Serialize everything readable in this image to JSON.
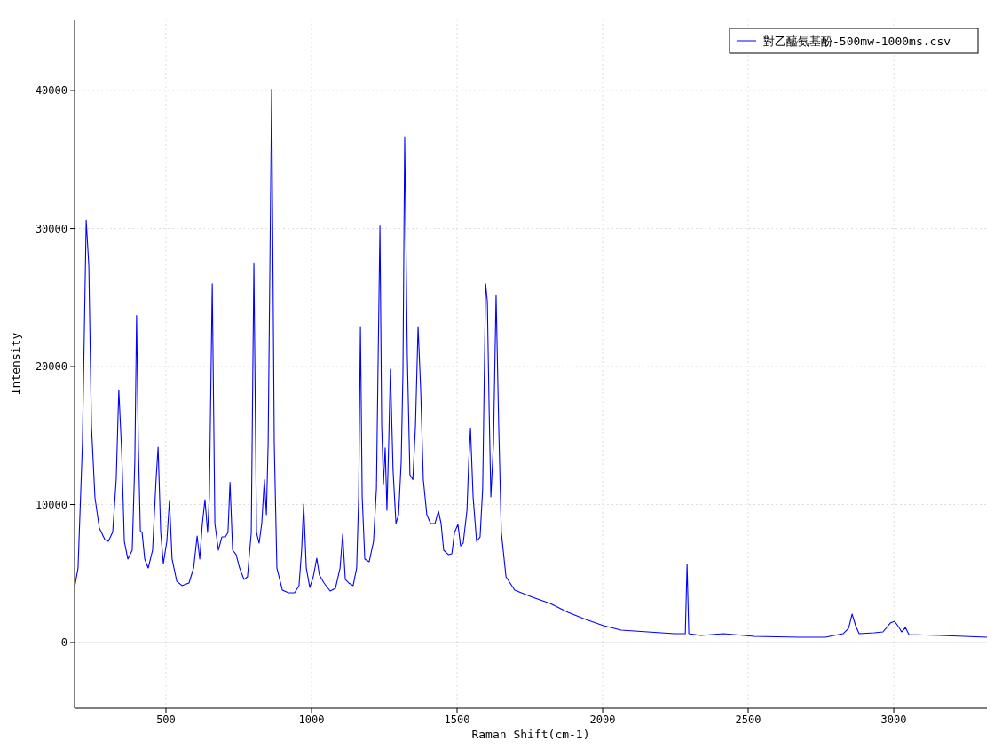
{
  "chart_data": {
    "type": "line",
    "xlabel": "Raman Shift(cm-1)",
    "ylabel": "Intensity",
    "xlim": [
      186,
      3320
    ],
    "ylim": [
      -4760,
      45150
    ],
    "xticks": [
      500,
      1000,
      1500,
      2000,
      2500,
      3000
    ],
    "yticks": [
      0,
      10000,
      20000,
      30000,
      40000
    ],
    "grid": true,
    "legend": "top right",
    "series": [
      {
        "name": "對乙醯氨基酚-500mw-1000ms.csv",
        "color": "#0000ff",
        "x": [
          186,
          198,
          213,
          226,
          235,
          244,
          256,
          271,
          290,
          302,
          317,
          329,
          338,
          348,
          357,
          369,
          384,
          393,
          399,
          405,
          412,
          418,
          427,
          439,
          454,
          466,
          473,
          482,
          491,
          503,
          512,
          521,
          537,
          555,
          579,
          595,
          607,
          616,
          625,
          634,
          643,
          649,
          659,
          668,
          680,
          692,
          704,
          713,
          720,
          729,
          741,
          753,
          768,
          780,
          793,
          802,
          811,
          820,
          829,
          838,
          845,
          851,
          863,
          872,
          881,
          900,
          921,
          942,
          957,
          966,
          973,
          982,
          994,
          1006,
          1018,
          1027,
          1043,
          1064,
          1082,
          1098,
          1107,
          1116,
          1128,
          1143,
          1155,
          1162,
          1168,
          1174,
          1183,
          1198,
          1213,
          1223,
          1229,
          1235,
          1241,
          1247,
          1253,
          1259,
          1265,
          1271,
          1280,
          1290,
          1299,
          1308,
          1314,
          1320,
          1329,
          1338,
          1348,
          1357,
          1366,
          1375,
          1384,
          1396,
          1409,
          1424,
          1436,
          1445,
          1454,
          1470,
          1482,
          1491,
          1503,
          1512,
          1521,
          1534,
          1540,
          1546,
          1555,
          1567,
          1579,
          1588,
          1598,
          1604,
          1610,
          1616,
          1625,
          1634,
          1643,
          1652,
          1668,
          1698,
          1759,
          1820,
          1881,
          1942,
          2003,
          2064,
          2155,
          2247,
          2284,
          2290,
          2296,
          2338,
          2415,
          2521,
          2674,
          2765,
          2826,
          2845,
          2857,
          2869,
          2881,
          2933,
          2963,
          2988,
          3003,
          3018,
          3027,
          3040,
          3052,
          3162,
          3320
        ],
        "values": [
          3990,
          5400,
          14400,
          30600,
          27300,
          15700,
          10500,
          8300,
          7460,
          7330,
          8000,
          11800,
          18300,
          13800,
          7330,
          6050,
          6690,
          13100,
          23700,
          14400,
          8100,
          7970,
          6050,
          5400,
          6690,
          11800,
          14150,
          7970,
          5720,
          7330,
          10300,
          6050,
          4440,
          4120,
          4310,
          5400,
          7720,
          6050,
          8620,
          10350,
          7970,
          10550,
          26000,
          8620,
          6690,
          7650,
          7650,
          7970,
          11600,
          6690,
          6370,
          5400,
          4570,
          4760,
          7970,
          27500,
          7970,
          7200,
          8620,
          11800,
          9260,
          14400,
          40100,
          14400,
          5400,
          3790,
          3600,
          3600,
          4120,
          6690,
          10030,
          5400,
          3990,
          4760,
          6110,
          4890,
          4310,
          3730,
          3920,
          5400,
          7850,
          4570,
          4310,
          4120,
          5400,
          10550,
          22900,
          10550,
          6050,
          5850,
          7330,
          11200,
          20800,
          30200,
          15700,
          11500,
          14100,
          9580,
          14400,
          19800,
          12500,
          8620,
          9260,
          13100,
          19550,
          36650,
          20800,
          12150,
          11800,
          15700,
          22900,
          18300,
          11800,
          9260,
          8620,
          8620,
          9520,
          8620,
          6690,
          6370,
          6430,
          7970,
          8550,
          7000,
          7200,
          9580,
          13100,
          15550,
          10550,
          7330,
          7650,
          11200,
          26000,
          24700,
          17000,
          10550,
          14400,
          25200,
          15700,
          7970,
          4760,
          3790,
          3280,
          2830,
          2190,
          1670,
          1220,
          900,
          770,
          640,
          640,
          5660,
          640,
          510,
          640,
          450,
          390,
          390,
          640,
          1030,
          2060,
          1220,
          640,
          710,
          770,
          1410,
          1540,
          1090,
          770,
          1090,
          580,
          510,
          390
        ]
      }
    ]
  }
}
